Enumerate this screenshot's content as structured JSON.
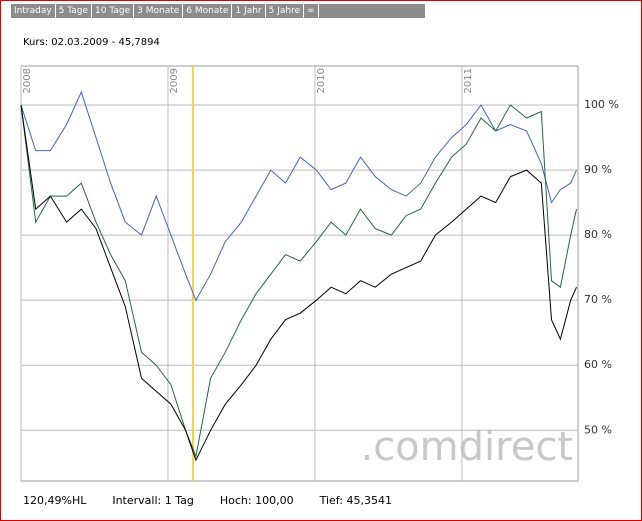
{
  "tabs": [
    "Intraday",
    "5 Tage",
    "10 Tage",
    "3 Monate",
    "6 Monate",
    "1 Jahr",
    "5 Jahre",
    "∞"
  ],
  "kurs": "Kurs: 02.03.2009 - 45,7894",
  "watermark": ".comdirect",
  "footer": [
    "120,49%HL",
    "Intervall: 1 Tag",
    "Hoch: 100,00",
    "Tief: 45,3541"
  ],
  "chart_data": {
    "type": "line",
    "x": [
      2008.0,
      2008.1,
      2008.2,
      2008.31,
      2008.41,
      2008.51,
      2008.61,
      2008.71,
      2008.82,
      2008.92,
      2009.02,
      2009.12,
      2009.19,
      2009.29,
      2009.39,
      2009.5,
      2009.6,
      2009.7,
      2009.8,
      2009.9,
      2010.01,
      2010.11,
      2010.21,
      2010.31,
      2010.41,
      2010.52,
      2010.62,
      2010.72,
      2010.82,
      2010.93,
      2011.03,
      2011.13,
      2011.23,
      2011.33,
      2011.44,
      2011.54,
      2011.61,
      2011.67,
      2011.74,
      2011.78
    ],
    "series": [
      {
        "color": "#3a66c4",
        "values": [
          100,
          93,
          93,
          97,
          102,
          95,
          88,
          82,
          80,
          86,
          80,
          74,
          70,
          74,
          79,
          82,
          86,
          90,
          88,
          92,
          90,
          87,
          88,
          92,
          89,
          87,
          86,
          88,
          92,
          95,
          97,
          100,
          96,
          97,
          96,
          91,
          85,
          87,
          88,
          90
        ]
      },
      {
        "color": "#1e6b3c",
        "values": [
          100,
          82,
          86,
          86,
          88,
          82,
          77,
          73,
          62,
          60,
          57,
          50,
          46,
          58,
          62,
          67,
          71,
          74,
          77,
          76,
          79,
          82,
          80,
          84,
          81,
          80,
          83,
          84,
          88,
          92,
          94,
          98,
          96,
          100,
          98,
          99,
          73,
          72,
          80,
          84
        ]
      },
      {
        "color": "#000000",
        "values": [
          100,
          84,
          86,
          82,
          84,
          81,
          75,
          69,
          58,
          56,
          54,
          50,
          45.4,
          50,
          54,
          57,
          60,
          64,
          67,
          68,
          70,
          72,
          71,
          73,
          72,
          74,
          75,
          76,
          80,
          82,
          84,
          86,
          85,
          89,
          90,
          88,
          67,
          64,
          70,
          72
        ]
      }
    ],
    "xlim": [
      2008,
      2011.79
    ],
    "xticks": [
      2008,
      2009,
      2010,
      2011
    ],
    "ylim": [
      42.2,
      106
    ],
    "yticks": [
      {
        "value": 50,
        "label": "50 %"
      },
      {
        "value": 60,
        "label": "60 %"
      },
      {
        "value": 70,
        "label": "70 %"
      },
      {
        "value": 80,
        "label": "80 %"
      },
      {
        "value": 90,
        "label": "90 %"
      },
      {
        "value": 100,
        "label": "100 %"
      }
    ],
    "marker": 2009.17,
    "marker_color": "#f5d442",
    "grid": true
  }
}
